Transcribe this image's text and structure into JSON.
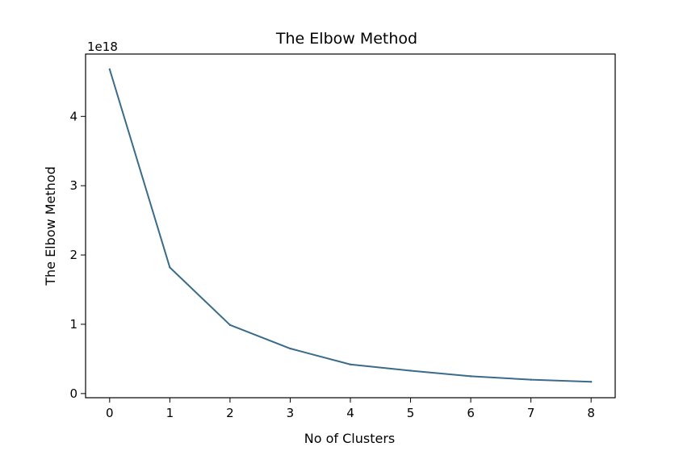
{
  "chart_data": {
    "type": "line",
    "title": "The Elbow Method",
    "xlabel": "No of Clusters",
    "ylabel": "The Elbow Method",
    "y_offset_label": "1e18",
    "x": [
      0,
      1,
      2,
      3,
      4,
      5,
      6,
      7,
      8
    ],
    "x_tick_labels": [
      "0",
      "1",
      "2",
      "3",
      "4",
      "5",
      "6",
      "7",
      "8"
    ],
    "y_ticks": [
      0,
      1,
      2,
      3,
      4
    ],
    "y_tick_labels": [
      "0",
      "1",
      "2",
      "3",
      "4"
    ],
    "xlim": [
      -0.4,
      8.4
    ],
    "ylim": [
      -0.06,
      4.9
    ],
    "series": [
      {
        "values": [
          4.68,
          1.82,
          0.99,
          0.65,
          0.42,
          0.33,
          0.25,
          0.2,
          0.17
        ],
        "color": "#3a6b8a"
      }
    ],
    "grid": false,
    "legend": "none"
  }
}
